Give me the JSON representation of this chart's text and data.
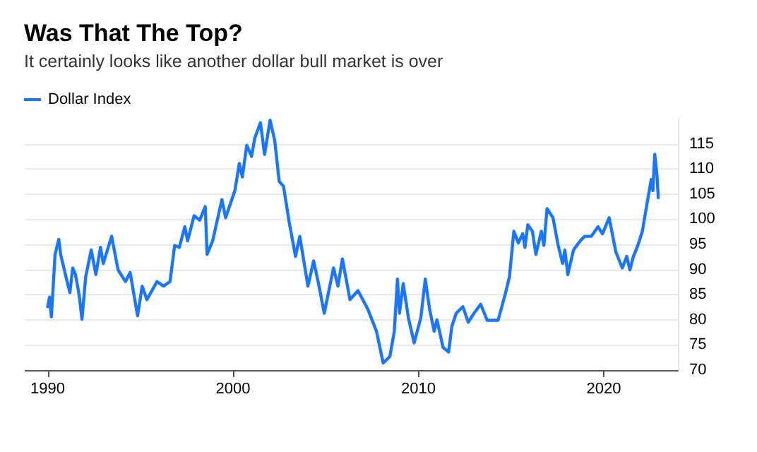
{
  "chart_data": {
    "type": "line",
    "title": "Was That The Top?",
    "subtitle": "It certainly looks like another dollar bull market is over",
    "legend": "top left",
    "grid": "y",
    "xlim": [
      1988.8,
      2024
    ],
    "xticks": [
      1990,
      2000,
      2010,
      2020
    ],
    "ylim": [
      70,
      120
    ],
    "yticks": [
      70,
      75,
      80,
      85,
      90,
      95,
      100,
      105,
      110,
      115
    ],
    "series": [
      {
        "name": "Dollar Index",
        "color": "#1a75ff",
        "x": [
          1990.0,
          1990.1,
          1990.2,
          1990.4,
          1990.6,
          1990.7,
          1991.05,
          1991.2,
          1991.35,
          1991.5,
          1991.7,
          1991.85,
          1992.05,
          1992.35,
          1992.6,
          1992.85,
          1993.0,
          1993.45,
          1993.8,
          1994.2,
          1994.45,
          1994.85,
          1995.1,
          1995.35,
          1995.9,
          1996.25,
          1996.6,
          1996.85,
          1997.1,
          1997.4,
          1997.55,
          1997.9,
          1998.2,
          1998.5,
          1998.6,
          1998.9,
          1999.4,
          1999.6,
          2000.1,
          2000.34,
          2000.5,
          2000.74,
          2001.0,
          2001.17,
          2001.48,
          2001.7,
          2002.0,
          2002.25,
          2002.49,
          2002.72,
          2003.03,
          2003.37,
          2003.6,
          2003.8,
          2004.04,
          2004.35,
          2004.64,
          2004.92,
          2005.42,
          2005.66,
          2005.9,
          2006.31,
          2006.74,
          2007.26,
          2007.74,
          2008.1,
          2008.46,
          2008.7,
          2008.87,
          2008.98,
          2009.18,
          2009.46,
          2009.77,
          2010.13,
          2010.37,
          2010.6,
          2010.85,
          2011.0,
          2011.33,
          2011.63,
          2011.8,
          2012.04,
          2012.4,
          2012.69,
          2013.0,
          2013.36,
          2013.71,
          2014.3,
          2014.67,
          2014.91,
          2015.15,
          2015.39,
          2015.63,
          2015.75,
          2015.9,
          2016.15,
          2016.34,
          2016.63,
          2016.77,
          2016.94,
          2017.26,
          2017.54,
          2017.78,
          2017.9,
          2018.06,
          2018.37,
          2018.73,
          2018.97,
          2019.33,
          2019.69,
          2019.93,
          2020.29,
          2020.65,
          2021.0,
          2021.24,
          2021.41,
          2021.6,
          2021.84,
          2022.08,
          2022.37,
          2022.56,
          2022.65,
          2022.75,
          2022.87,
          2022.94
        ],
        "values": [
          82.6,
          84.5,
          80.6,
          93,
          96,
          93,
          87.6,
          85.4,
          90.3,
          89,
          84.9,
          80.1,
          88.5,
          93.9,
          89,
          94.4,
          91.2,
          96.6,
          89.9,
          87.6,
          89.4,
          80.8,
          86.7,
          84,
          87.6,
          86.7,
          87.6,
          94.8,
          94.4,
          98.5,
          95.7,
          100.7,
          99.8,
          102.5,
          93,
          95.7,
          103.9,
          100.3,
          105.7,
          111.1,
          108.4,
          114.7,
          112.5,
          116.1,
          119.2,
          112.9,
          119.7,
          115.6,
          107.5,
          106.6,
          99.4,
          92.6,
          96.6,
          92.1,
          86.7,
          91.7,
          86.7,
          81.3,
          90.3,
          86.7,
          92.1,
          84,
          85.8,
          82.2,
          77.7,
          71.4,
          72.7,
          77.7,
          88.1,
          81.3,
          87.2,
          80.4,
          75.4,
          80.4,
          88.1,
          82.2,
          77.7,
          80,
          74.5,
          73.6,
          78.6,
          81.3,
          82.6,
          79.5,
          81.3,
          83.1,
          79.9,
          79.9,
          84.9,
          88.5,
          97.6,
          95.3,
          97.1,
          94.4,
          98.9,
          97.6,
          93,
          97.6,
          94.8,
          102.1,
          100.3,
          94.8,
          91.2,
          93.9,
          89,
          93.9,
          95.7,
          96.6,
          96.6,
          98.5,
          97.1,
          100.3,
          93.5,
          90.3,
          92.6,
          89.9,
          92.6,
          94.8,
          97.6,
          103.9,
          107.9,
          105.7,
          112.9,
          108.8,
          104.3
        ]
      }
    ]
  }
}
